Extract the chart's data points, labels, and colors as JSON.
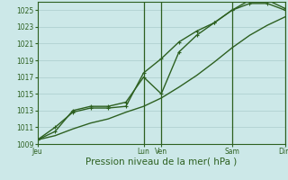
{
  "xlabel": "Pression niveau de la mer( hPa )",
  "background_color": "#cce8e8",
  "plot_bg_color": "#cce8e8",
  "grid_color": "#aacccc",
  "line_color": "#2d6020",
  "vline_color": "#2d6020",
  "ylim": [
    1009,
    1026
  ],
  "yticks": [
    1009,
    1011,
    1013,
    1015,
    1017,
    1019,
    1021,
    1023,
    1025
  ],
  "day_labels": [
    "Jeu",
    "Lun",
    "Ven",
    "Sam",
    "Dim"
  ],
  "day_positions": [
    0.0,
    3.0,
    3.5,
    5.5,
    7.0
  ],
  "vline_positions": [
    3.0,
    3.5,
    5.5,
    7.0
  ],
  "xlim": [
    0,
    7.0
  ],
  "series1_x": [
    0.0,
    0.5,
    1.0,
    1.5,
    2.0,
    2.5,
    3.0,
    3.5,
    4.0,
    4.5,
    5.0,
    5.5,
    6.0,
    6.5,
    7.0
  ],
  "series1_y": [
    1009.5,
    1011.0,
    1012.8,
    1013.3,
    1013.3,
    1013.5,
    1017.5,
    1019.2,
    1021.2,
    1022.5,
    1023.5,
    1025.0,
    1025.8,
    1025.8,
    1025.0
  ],
  "series2_x": [
    0.0,
    0.5,
    1.0,
    1.5,
    2.0,
    2.5,
    3.0,
    3.5,
    4.0,
    4.5,
    5.0,
    5.5,
    6.0,
    6.5,
    7.0
  ],
  "series2_y": [
    1009.5,
    1010.5,
    1013.0,
    1013.5,
    1013.5,
    1014.0,
    1017.0,
    1015.0,
    1020.0,
    1022.0,
    1023.5,
    1025.0,
    1026.2,
    1026.2,
    1025.2
  ],
  "series3_x": [
    0.0,
    0.5,
    1.0,
    1.5,
    2.0,
    2.5,
    3.0,
    3.5,
    4.0,
    4.5,
    5.0,
    5.5,
    6.0,
    6.5,
    7.0
  ],
  "series3_y": [
    1009.5,
    1010.0,
    1010.8,
    1011.5,
    1012.0,
    1012.8,
    1013.5,
    1014.5,
    1015.8,
    1017.2,
    1018.8,
    1020.5,
    1022.0,
    1023.2,
    1024.2
  ],
  "marker_size": 2.5,
  "line_width": 1.0,
  "tick_fontsize": 5.5,
  "xlabel_fontsize": 7.5
}
